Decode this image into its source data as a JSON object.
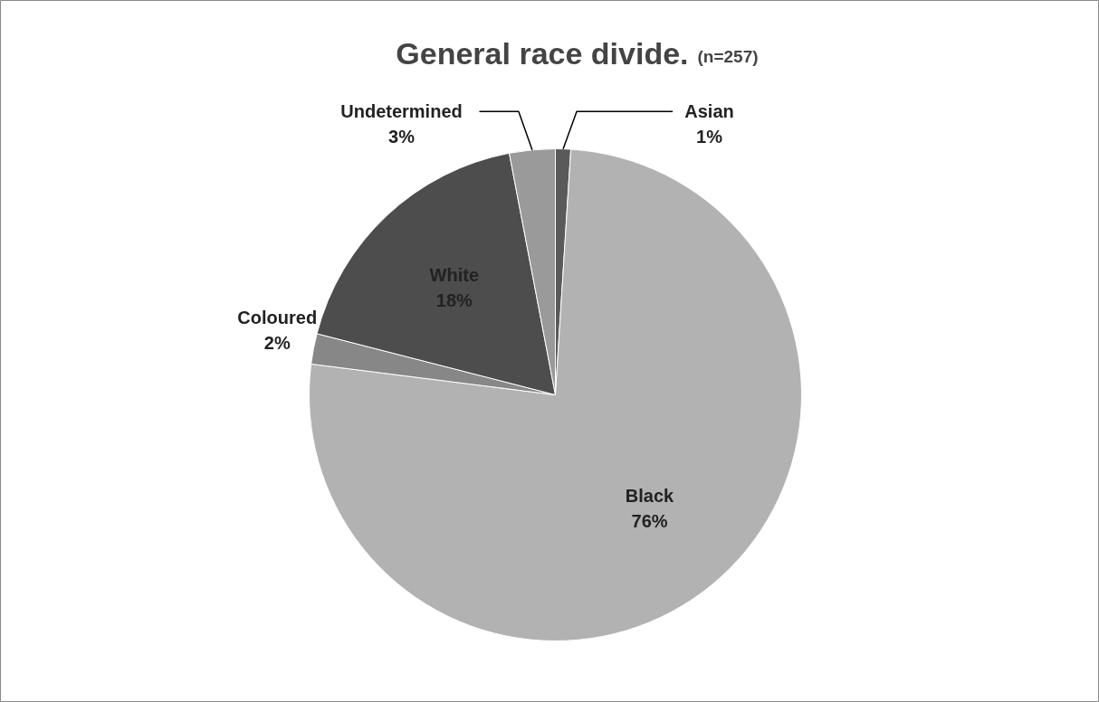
{
  "chart_data": {
    "type": "pie",
    "title": "General race divide.",
    "subtitle": "(n=257)",
    "categories": [
      "Asian",
      "Black",
      "Coloured",
      "White",
      "Undetermined"
    ],
    "values": [
      1,
      76,
      2,
      18,
      3
    ],
    "value_labels": [
      "1%",
      "76%",
      "2%",
      "18%",
      "3%"
    ],
    "colors": [
      "#5a5a5a",
      "#b2b2b2",
      "#878787",
      "#4d4d4d",
      "#9a9a9a"
    ]
  }
}
